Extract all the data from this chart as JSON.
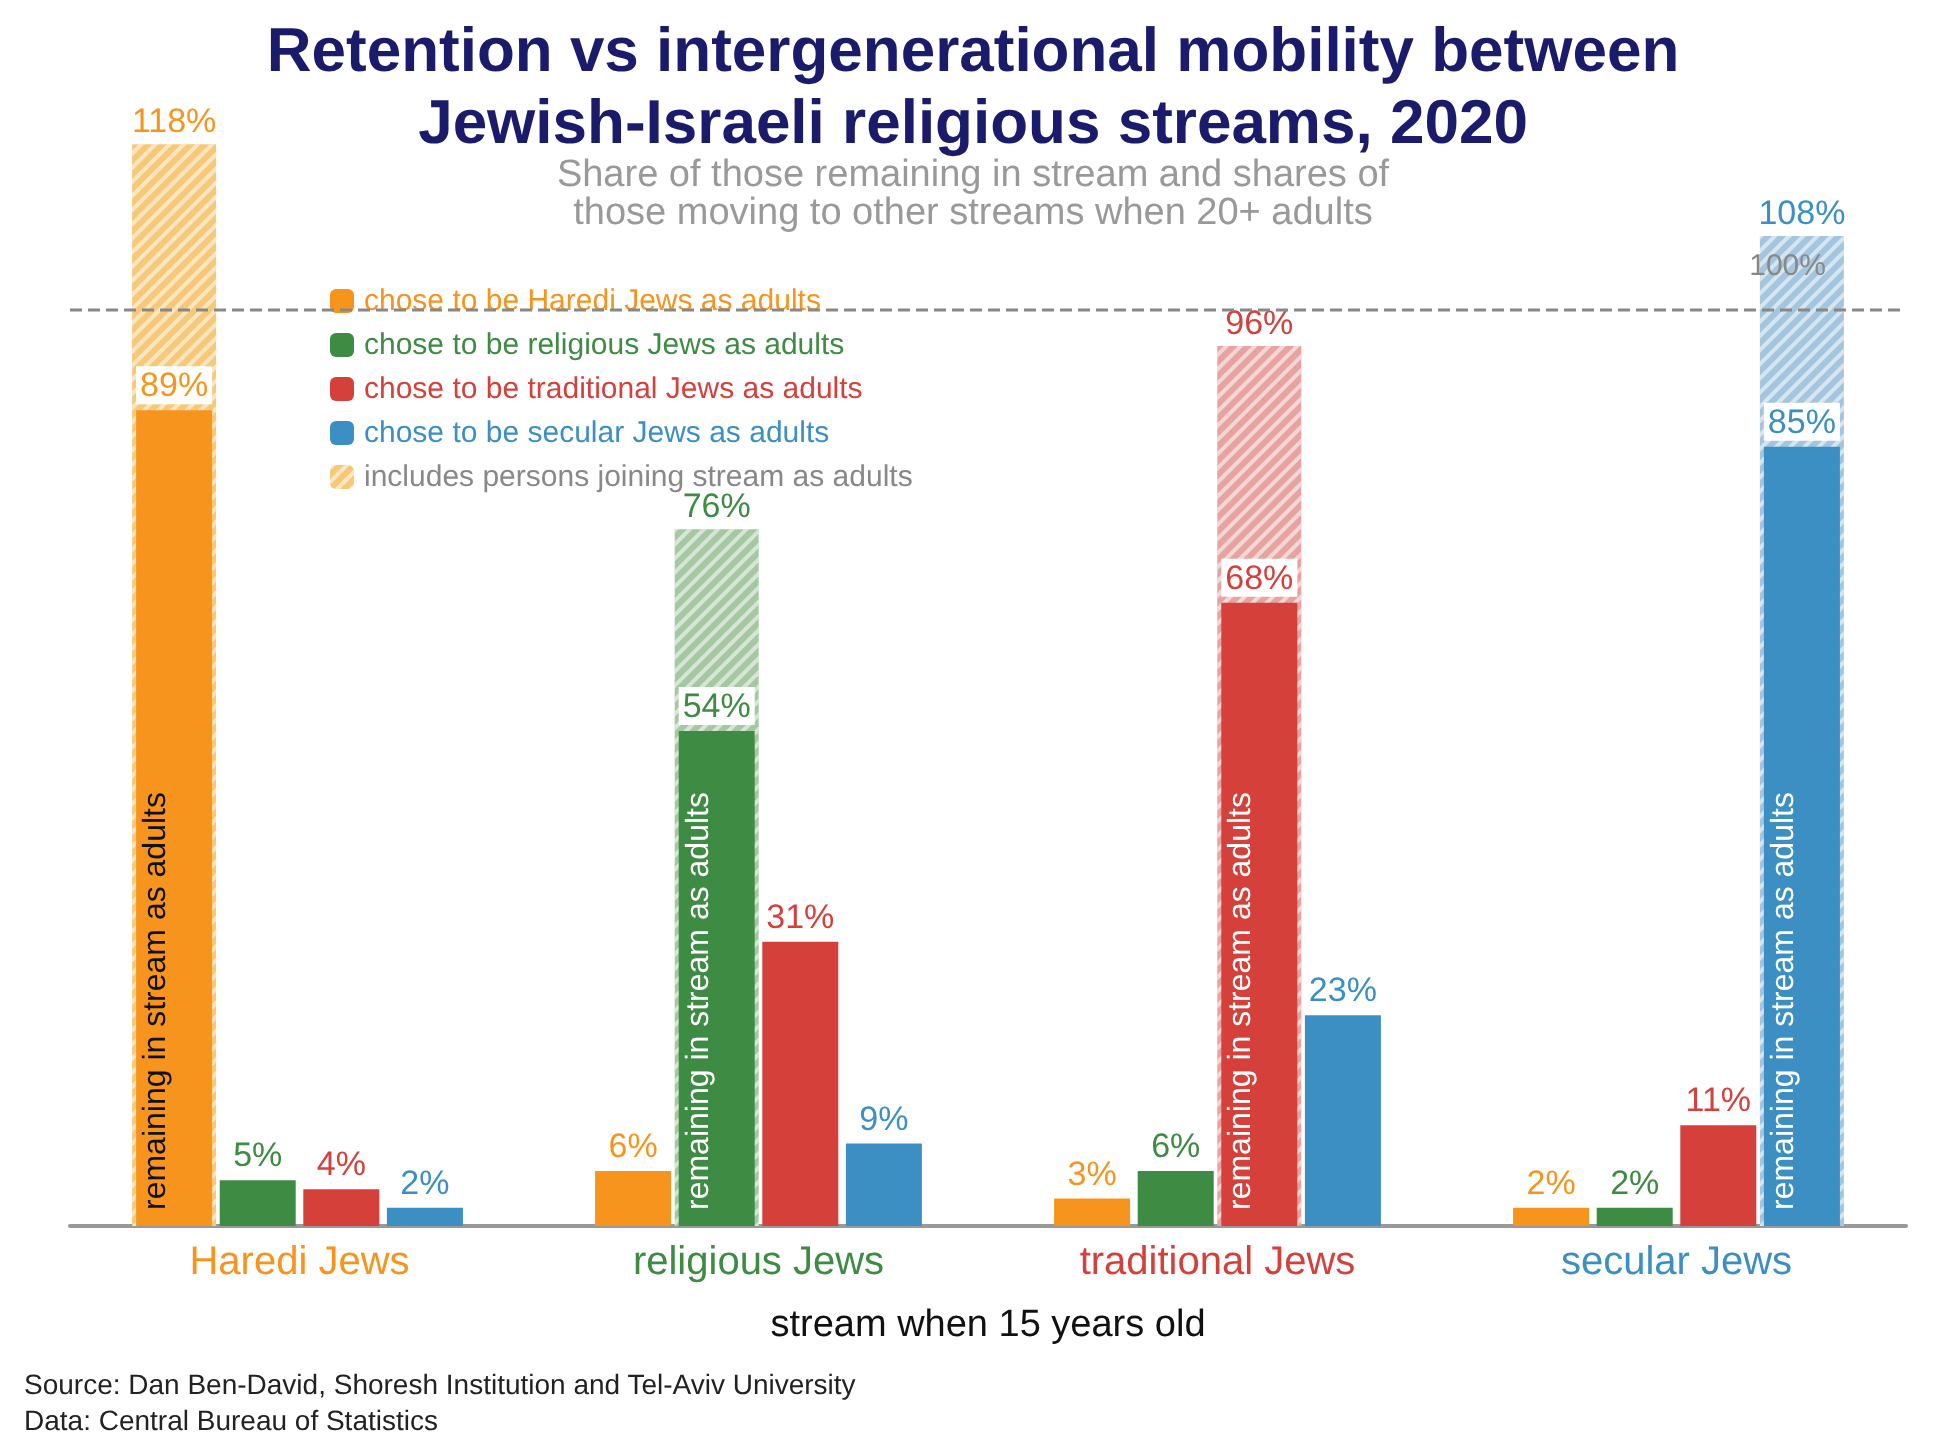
{
  "chart_data": {
    "type": "bar",
    "title": "Retention vs intergenerational mobility between\nJewish-Israeli religious streams, 2020",
    "subtitle": "Share of those remaining in stream and shares of\nthose moving to other streams when 20+ adults",
    "xlabel": "stream when 15 years old",
    "categories": [
      "Haredi Jews",
      "religious Jews",
      "traditional Jews",
      "secular Jews"
    ],
    "series": [
      {
        "name": "chose to be Haredi Jews as adults",
        "color": "#f7941d",
        "values": [
          89,
          6,
          3,
          2
        ],
        "value_labels": [
          "89%",
          "6%",
          "3%",
          "2%"
        ]
      },
      {
        "name": "chose to be religious Jews as adults",
        "color": "#3e8b43",
        "values": [
          5,
          54,
          6,
          2
        ],
        "value_labels": [
          "5%",
          "54%",
          "6%",
          "2%"
        ]
      },
      {
        "name": "chose to be traditional Jews as adults",
        "color": "#d5403b",
        "values": [
          4,
          31,
          68,
          11
        ],
        "value_labels": [
          "4%",
          "31%",
          "68%",
          "11%"
        ]
      },
      {
        "name": "chose to be secular Jews as adults",
        "color": "#3c8fc3",
        "values": [
          2,
          9,
          23,
          85
        ],
        "value_labels": [
          "2%",
          "9%",
          "23%",
          "85%"
        ]
      },
      {
        "name": "includes persons joining stream as adults",
        "type": "bar",
        "values": [
          118,
          76,
          96,
          108
        ],
        "colors": [
          "#f7c878",
          "#a5c7a2",
          "#e6a39f",
          "#a3c6de"
        ],
        "value_labels": [
          "118%",
          "76%",
          "96%",
          "108%"
        ]
      }
    ],
    "ref_lines": [
      {
        "axis": "y",
        "value": 100,
        "label": "100%",
        "color": "#888888",
        "line_style": "dashed"
      }
    ],
    "legend": "top left",
    "annotations": [
      "remaining in stream as adults",
      "remaining in stream as adults",
      "remaining in stream as adults",
      "remaining in stream as adults",
      "Source: Dan Ben-David, Shoresh Institution and Tel-Aviv University",
      "Data: Central Bureau of Statistics"
    ]
  }
}
